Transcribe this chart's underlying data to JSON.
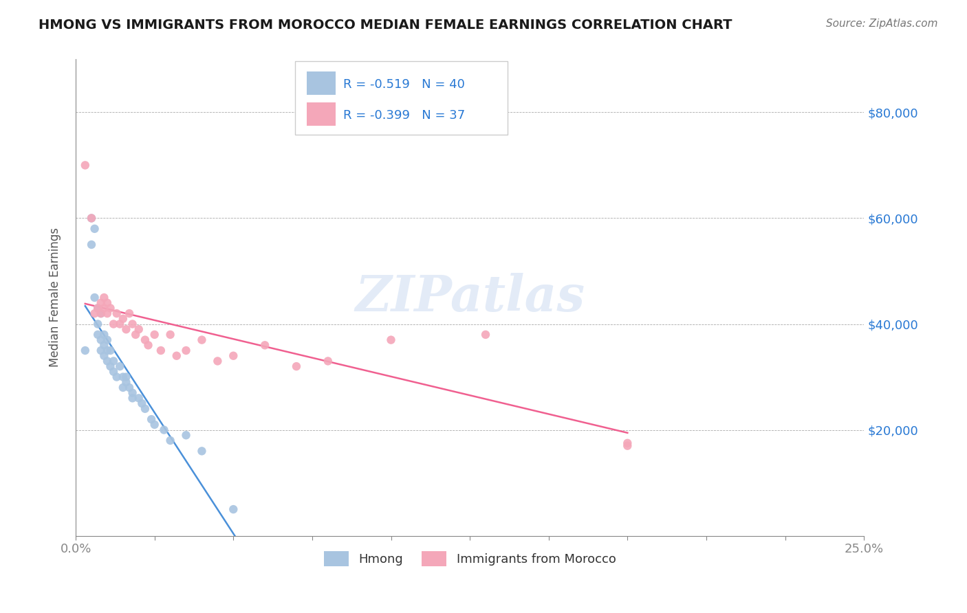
{
  "title": "HMONG VS IMMIGRANTS FROM MOROCCO MEDIAN FEMALE EARNINGS CORRELATION CHART",
  "source": "Source: ZipAtlas.com",
  "xlabel": "",
  "ylabel": "Median Female Earnings",
  "xlim": [
    0.0,
    0.25
  ],
  "ylim": [
    0,
    90000
  ],
  "yticks": [
    0,
    20000,
    40000,
    60000,
    80000
  ],
  "ytick_labels": [
    "",
    "$20,000",
    "$40,000",
    "$60,000",
    "$80,000"
  ],
  "xtick_labels": [
    "0.0%",
    "25.0%"
  ],
  "legend_r1": "R = -0.519",
  "legend_n1": "N = 40",
  "legend_r2": "R = -0.399",
  "legend_n2": "N = 37",
  "color_hmong": "#a8c4e0",
  "color_morocco": "#f4a7b9",
  "color_hmong_line": "#4a90d9",
  "color_morocco_line": "#f06090",
  "color_title": "#1a1a1a",
  "color_axis": "#2979d4",
  "color_source": "#555555",
  "watermark": "ZIPatlas",
  "hmong_x": [
    0.003,
    0.005,
    0.005,
    0.006,
    0.006,
    0.007,
    0.007,
    0.007,
    0.008,
    0.008,
    0.008,
    0.009,
    0.009,
    0.009,
    0.01,
    0.01,
    0.01,
    0.011,
    0.011,
    0.012,
    0.012,
    0.013,
    0.014,
    0.015,
    0.015,
    0.016,
    0.016,
    0.017,
    0.018,
    0.018,
    0.02,
    0.021,
    0.022,
    0.024,
    0.025,
    0.028,
    0.03,
    0.035,
    0.04,
    0.05
  ],
  "hmong_y": [
    35000,
    60000,
    55000,
    58000,
    45000,
    43000,
    40000,
    38000,
    42000,
    37000,
    35000,
    38000,
    36000,
    34000,
    37000,
    35000,
    33000,
    35000,
    32000,
    33000,
    31000,
    30000,
    32000,
    30000,
    28000,
    30000,
    29000,
    28000,
    27000,
    26000,
    26000,
    25000,
    24000,
    22000,
    21000,
    20000,
    18000,
    19000,
    16000,
    5000
  ],
  "morocco_x": [
    0.003,
    0.005,
    0.006,
    0.007,
    0.008,
    0.008,
    0.009,
    0.009,
    0.01,
    0.01,
    0.011,
    0.012,
    0.013,
    0.014,
    0.015,
    0.016,
    0.017,
    0.018,
    0.019,
    0.02,
    0.022,
    0.023,
    0.025,
    0.027,
    0.03,
    0.032,
    0.035,
    0.04,
    0.045,
    0.05,
    0.06,
    0.07,
    0.08,
    0.1,
    0.13,
    0.175,
    0.175
  ],
  "morocco_y": [
    70000,
    60000,
    42000,
    43000,
    44000,
    42000,
    45000,
    43000,
    44000,
    42000,
    43000,
    40000,
    42000,
    40000,
    41000,
    39000,
    42000,
    40000,
    38000,
    39000,
    37000,
    36000,
    38000,
    35000,
    38000,
    34000,
    35000,
    37000,
    33000,
    34000,
    36000,
    32000,
    33000,
    37000,
    38000,
    17000,
    17500
  ]
}
